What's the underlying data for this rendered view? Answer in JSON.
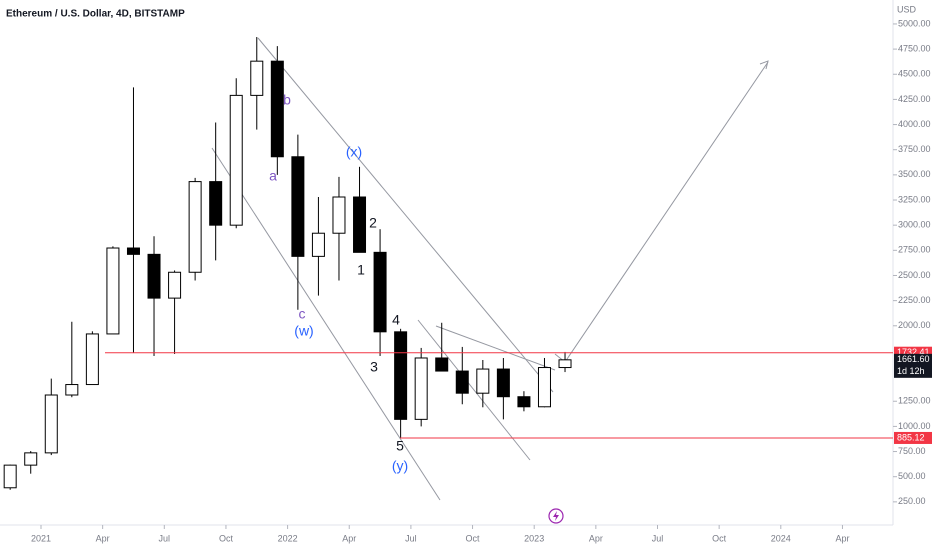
{
  "chart_data": {
    "type": "candlestick",
    "title": "Ethereum / U.S. Dollar, 4D, BITSTAMP",
    "currency": "USD",
    "x": [
      "2020-11",
      "2020-12",
      "2021-01",
      "2021-02",
      "2021-03",
      "2021-04",
      "2021-05",
      "2021-06",
      "2021-07",
      "2021-08",
      "2021-09",
      "2021-10",
      "2021-11",
      "2021-12",
      "2022-01",
      "2022-02",
      "2022-03",
      "2022-04",
      "2022-05",
      "2022-06",
      "2022-07",
      "2022-08",
      "2022-09",
      "2022-10",
      "2022-11",
      "2022-12",
      "2023-01",
      "2023-02"
    ],
    "open": [
      390,
      615,
      737,
      1312,
      1416,
      1919,
      2773,
      2710,
      2275,
      2532,
      3433,
      3000,
      4290,
      4630,
      3680,
      2690,
      2920,
      3280,
      2730,
      1940,
      1070,
      1680,
      1550,
      1330,
      1570,
      1295,
      1195,
      1585
    ],
    "high": [
      620,
      755,
      1475,
      2040,
      1945,
      2790,
      4370,
      2890,
      2550,
      3470,
      4020,
      4460,
      4870,
      4780,
      3900,
      3280,
      3480,
      3580,
      2960,
      1970,
      1780,
      2030,
      1790,
      1660,
      1680,
      1350,
      1680,
      1740
    ],
    "low": [
      370,
      530,
      715,
      1290,
      1440,
      1935,
      1730,
      1700,
      1720,
      2450,
      2650,
      2970,
      3950,
      3500,
      2160,
      2300,
      2450,
      2770,
      1700,
      880,
      1000,
      1550,
      1220,
      1190,
      1070,
      1150,
      1190,
      1540
    ],
    "close": [
      615,
      737,
      1312,
      1416,
      1919,
      2773,
      2710,
      2275,
      2532,
      3433,
      3000,
      4290,
      4630,
      3680,
      2690,
      2920,
      3280,
      2730,
      1940,
      1070,
      1680,
      1550,
      1330,
      1570,
      1295,
      1195,
      1585,
      1661.6
    ],
    "ylim": [
      20,
      5238
    ],
    "yticks": [
      {
        "value": 5000,
        "label": "5000.00"
      },
      {
        "value": 4750,
        "label": "4750.00"
      },
      {
        "value": 4500,
        "label": "4500.00"
      },
      {
        "value": 4250,
        "label": "4250.00"
      },
      {
        "value": 4000,
        "label": "4000.00"
      },
      {
        "value": 3750,
        "label": "3750.00"
      },
      {
        "value": 3500,
        "label": "3500.00"
      },
      {
        "value": 3250,
        "label": "3250.00"
      },
      {
        "value": 3000,
        "label": "3000.00"
      },
      {
        "value": 2750,
        "label": "2750.00"
      },
      {
        "value": 2500,
        "label": "2500.00"
      },
      {
        "value": 2250,
        "label": "2250.00"
      },
      {
        "value": 2000,
        "label": "2000.00"
      },
      {
        "value": 1250,
        "label": "1250.00"
      },
      {
        "value": 1000,
        "label": "1000.00"
      },
      {
        "value": 750,
        "label": "750.00"
      },
      {
        "value": 500,
        "label": "500.00"
      },
      {
        "value": 250,
        "label": "250.00"
      }
    ],
    "xticks": [
      {
        "value": "2021-01",
        "label": "2021"
      },
      {
        "value": "2021-04",
        "label": "Apr"
      },
      {
        "value": "2021-07",
        "label": "Jul"
      },
      {
        "value": "2021-10",
        "label": "Oct"
      },
      {
        "value": "2022-01",
        "label": "2022"
      },
      {
        "value": "2022-04",
        "label": "Apr"
      },
      {
        "value": "2022-07",
        "label": "Jul"
      },
      {
        "value": "2022-10",
        "label": "Oct"
      },
      {
        "value": "2023-01",
        "label": "2023"
      },
      {
        "value": "2023-04",
        "label": "Apr"
      },
      {
        "value": "2023-07",
        "label": "Jul"
      },
      {
        "value": "2023-10",
        "label": "Oct"
      },
      {
        "value": "2024-01",
        "label": "2024"
      },
      {
        "value": "2024-04",
        "label": "Apr"
      }
    ],
    "levels": [
      {
        "value": 1732.41,
        "color": "#f23645"
      },
      {
        "value": 885.12,
        "color": "#f23645"
      }
    ],
    "last_price": {
      "value": 1661.6,
      "label": "1661.60"
    },
    "countdown": "1d 12h",
    "annotations": [
      "b",
      "a",
      "c",
      "(w)",
      "(x)",
      "2",
      "1",
      "4",
      "3",
      "5",
      "(y)"
    ]
  }
}
